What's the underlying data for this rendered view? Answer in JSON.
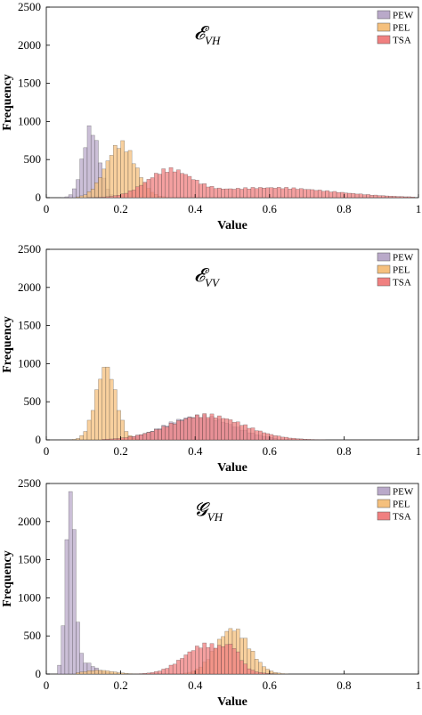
{
  "chart_data": [
    {
      "type": "bar",
      "subtype": "histogram",
      "title": "𝓔",
      "title_subscript": "VH",
      "xlabel": "Value",
      "ylabel": "Frequency",
      "xlim": [
        0,
        1
      ],
      "ylim": [
        0,
        2500
      ],
      "xticks": [
        "0",
        "0.2",
        "0.4",
        "0.6",
        "0.8",
        "1"
      ],
      "yticks": [
        "0",
        "500",
        "1000",
        "1500",
        "2000",
        "2500"
      ],
      "legend_position": "top-right",
      "series": [
        {
          "name": "PEW",
          "color": "#b9a9c9",
          "peaks": [
            [
              0.12,
              900,
              0.022
            ]
          ],
          "range": [
            0.04,
            0.22
          ]
        },
        {
          "name": "PEL",
          "color": "#f5c07d",
          "peaks": [
            [
              0.2,
              700,
              0.04
            ]
          ],
          "range": [
            0.08,
            0.34
          ]
        },
        {
          "name": "TSA",
          "color": "#f08080",
          "peaks": [
            [
              0.33,
              330,
              0.06
            ],
            [
              0.6,
              130,
              0.17
            ]
          ],
          "range": [
            0.1,
            0.99
          ]
        }
      ]
    },
    {
      "type": "bar",
      "subtype": "histogram",
      "title": "𝓔",
      "title_subscript": "VV",
      "xlabel": "Value",
      "ylabel": "Frequency",
      "xlim": [
        0,
        1
      ],
      "ylim": [
        0,
        2500
      ],
      "xticks": [
        "0",
        "0.2",
        "0.4",
        "0.6",
        "0.8",
        "1"
      ],
      "yticks": [
        "0",
        "500",
        "1000",
        "1500",
        "2000",
        "2500"
      ],
      "legend_position": "top-right",
      "series": [
        {
          "name": "PEW",
          "color": "#b9a9c9",
          "peaks": [
            [
              0.41,
              310,
              0.09
            ]
          ],
          "range": [
            0.22,
            0.62
          ]
        },
        {
          "name": "PEL",
          "color": "#f5c07d",
          "peaks": [
            [
              0.16,
              960,
              0.027
            ]
          ],
          "range": [
            0.07,
            0.3
          ]
        },
        {
          "name": "TSA",
          "color": "#f08080",
          "peaks": [
            [
              0.43,
              320,
              0.1
            ]
          ],
          "range": [
            0.15,
            0.99
          ]
        }
      ]
    },
    {
      "type": "bar",
      "subtype": "histogram",
      "title": "𝓖",
      "title_subscript": "VH",
      "xlabel": "Value",
      "ylabel": "Frequency",
      "xlim": [
        0,
        1
      ],
      "ylim": [
        0,
        2500
      ],
      "xticks": [
        "0",
        "0.2",
        "0.4",
        "0.6",
        "0.8",
        "1"
      ],
      "yticks": [
        "0",
        "500",
        "1000",
        "1500",
        "2000",
        "2500"
      ],
      "legend_position": "top-right",
      "series": [
        {
          "name": "PEW",
          "color": "#b9a9c9",
          "peaks": [
            [
              0.065,
              2400,
              0.012
            ],
            [
              0.1,
              150,
              0.03
            ]
          ],
          "range": [
            0.03,
            0.2
          ]
        },
        {
          "name": "PEL",
          "color": "#f5c07d",
          "peaks": [
            [
              0.5,
              590,
              0.045
            ],
            [
              0.14,
              50,
              0.04
            ]
          ],
          "range": [
            0.08,
            0.9
          ]
        },
        {
          "name": "TSA",
          "color": "#f08080",
          "peaks": [
            [
              0.43,
              380,
              0.06
            ],
            [
              0.5,
              180,
              0.02
            ]
          ],
          "range": [
            0.18,
            0.62
          ]
        }
      ]
    }
  ]
}
